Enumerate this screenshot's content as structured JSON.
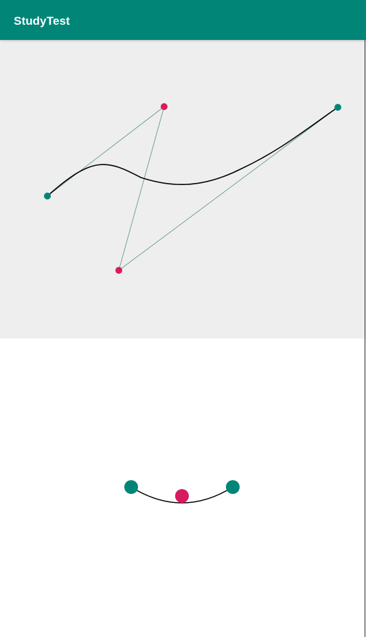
{
  "app_bar": {
    "title": "StudyTest"
  },
  "colors": {
    "primary": "#008577",
    "accent": "#D81B60",
    "canvas_background": "#EEEEEE",
    "curve": "#000000",
    "helper_line": "#5A8F86"
  }
}
